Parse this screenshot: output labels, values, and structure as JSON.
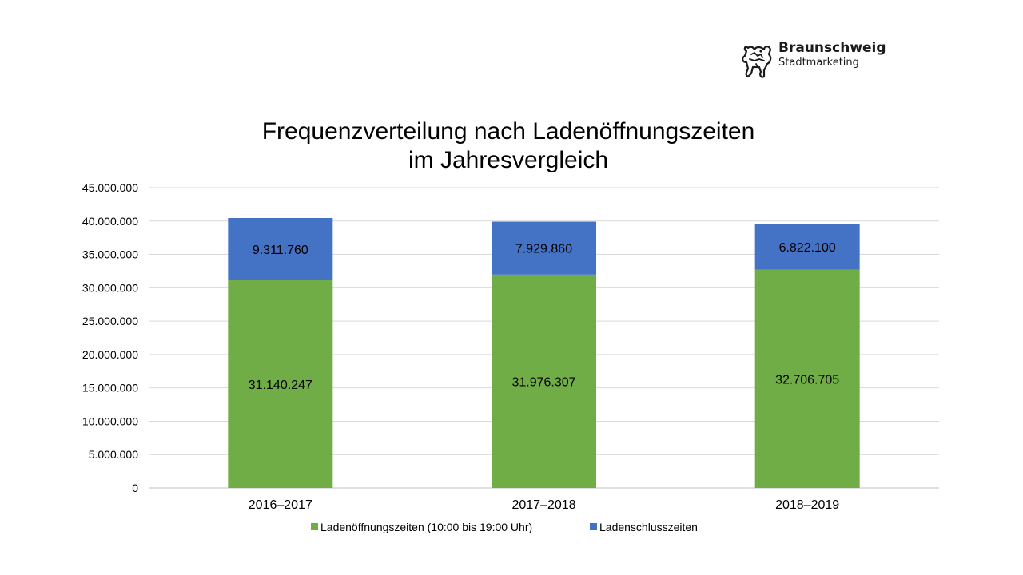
{
  "logo": {
    "name": "Braunschweig",
    "subtitle": "Stadtmarketing"
  },
  "chart_data": {
    "type": "bar",
    "stacked": true,
    "title": "Frequenzverteilung nach Ladenöffnungszeiten",
    "subtitle": "im Jahresvergleich",
    "xlabel": "",
    "ylabel": "",
    "ylim": [
      0,
      45000000
    ],
    "yticks": [
      0,
      5000000,
      10000000,
      15000000,
      20000000,
      25000000,
      30000000,
      35000000,
      40000000,
      45000000
    ],
    "ytick_labels": [
      "0",
      "5.000.000",
      "10.000.000",
      "15.000.000",
      "20.000.000",
      "25.000.000",
      "30.000.000",
      "35.000.000",
      "40.000.000",
      "45.000.000"
    ],
    "grid": true,
    "legend_position": "bottom",
    "categories": [
      "2016–2017",
      "2017–2018",
      "2018–2019"
    ],
    "series": [
      {
        "name": "Ladenöffnungszeiten (10:00 bis 19:00 Uhr)",
        "color": "#70ad47",
        "values": [
          31140247,
          31976307,
          32706705
        ],
        "labels": [
          "31.140.247",
          "31.976.307",
          "32.706.705"
        ]
      },
      {
        "name": "Ladenschlusszeiten",
        "color": "#4472c4",
        "values": [
          9311760,
          7929860,
          6822100
        ],
        "labels": [
          "9.311.760",
          "7.929.860",
          "6.822.100"
        ]
      }
    ]
  }
}
